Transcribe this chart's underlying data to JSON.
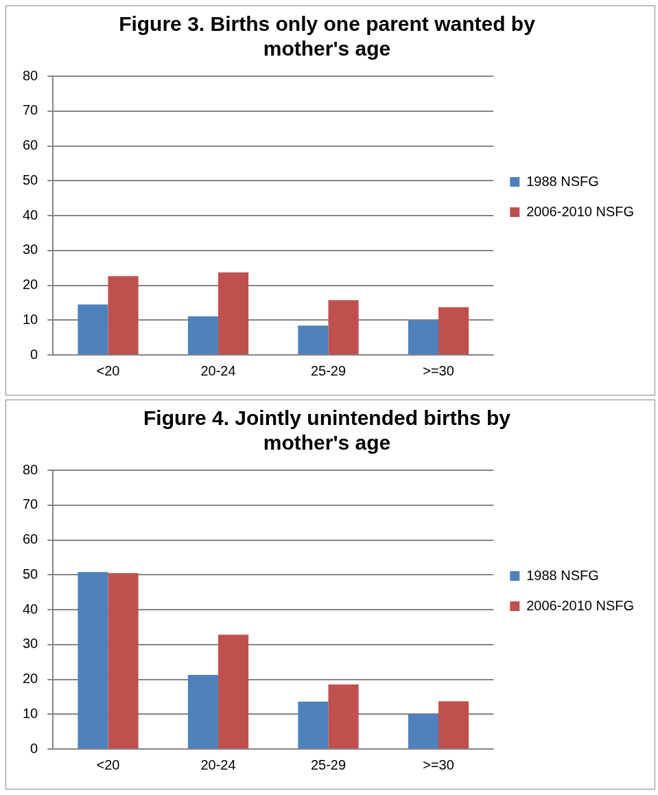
{
  "chart_data": [
    {
      "type": "bar",
      "title": "Figure 3. Births only one parent wanted by mother's age",
      "categories": [
        "<20",
        "20-24",
        "25-29",
        ">=30"
      ],
      "series": [
        {
          "name": "1988 NSFG",
          "color": "#4f81bd",
          "values": [
            14.5,
            11.1,
            8.4,
            9.9
          ]
        },
        {
          "name": "2006-2010 NSFG",
          "color": "#c0504d",
          "values": [
            22.6,
            23.7,
            15.7,
            13.7
          ]
        }
      ],
      "ylim": [
        0,
        80
      ],
      "yticks": [
        0,
        10,
        20,
        30,
        40,
        50,
        60,
        70,
        80
      ],
      "grid": "y",
      "legend": "right"
    },
    {
      "type": "bar",
      "title": "Figure 4. Jointly unintended births by mother's age",
      "categories": [
        "<20",
        "20-24",
        "25-29",
        ">=30"
      ],
      "series": [
        {
          "name": "1988 NSFG",
          "color": "#4f81bd",
          "values": [
            50.8,
            21.3,
            13.6,
            10.0
          ]
        },
        {
          "name": "2006-2010 NSFG",
          "color": "#c0504d",
          "values": [
            50.5,
            32.8,
            18.5,
            13.7
          ]
        }
      ],
      "ylim": [
        0,
        80
      ],
      "yticks": [
        0,
        10,
        20,
        30,
        40,
        50,
        60,
        70,
        80
      ],
      "grid": "y",
      "legend": "right"
    }
  ]
}
